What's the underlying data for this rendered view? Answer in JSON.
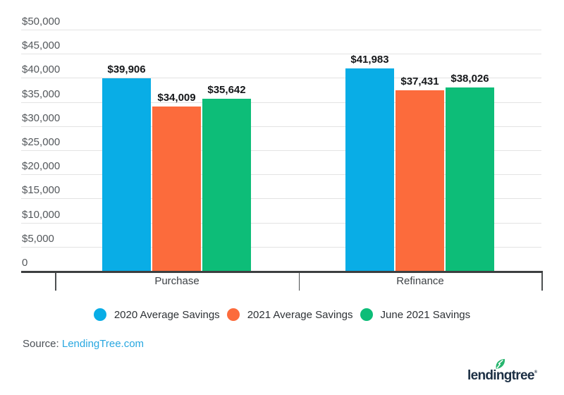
{
  "chart_data": {
    "type": "bar",
    "title": "",
    "categories": [
      "Purchase",
      "Refinance"
    ],
    "series": [
      {
        "name": "2020 Average Savings",
        "color": "#09ade6",
        "values": [
          39906,
          41983
        ],
        "labels": [
          "$39,906",
          "$41,983"
        ]
      },
      {
        "name": "2021 Average Savings",
        "color": "#fc6b3c",
        "values": [
          34009,
          37431
        ],
        "labels": [
          "$34,009",
          "$37,431"
        ]
      },
      {
        "name": "June 2021 Savings",
        "color": "#0dbd78",
        "values": [
          35642,
          38026
        ],
        "labels": [
          "$35,642",
          "$38,026"
        ]
      }
    ],
    "ylim": [
      0,
      50000
    ],
    "ytick_interval": 5000,
    "yticks": [
      {
        "value": 0,
        "label": "0"
      },
      {
        "value": 5000,
        "label": "$5,000"
      },
      {
        "value": 10000,
        "label": "$10,000"
      },
      {
        "value": 15000,
        "label": "$15,000"
      },
      {
        "value": 20000,
        "label": "$20,000"
      },
      {
        "value": 25000,
        "label": "$25,000"
      },
      {
        "value": 30000,
        "label": "$30,000"
      },
      {
        "value": 35000,
        "label": "$35,000"
      },
      {
        "value": 40000,
        "label": "$40,000"
      },
      {
        "value": 45000,
        "label": "$45,000"
      },
      {
        "value": 50000,
        "label": "$50,000"
      }
    ],
    "grid": "horizontal",
    "legend_position": "bottom",
    "xlabel": "",
    "ylabel": ""
  },
  "source": {
    "label": "Source:",
    "link_text": "LendingTree.com",
    "link_color": "#28a7e0"
  },
  "logo": {
    "text": "lendingtree",
    "registered": "®",
    "navy": "#1c2f44",
    "leaf_green": "#27b56e"
  },
  "colors": {
    "background": "#ffffff",
    "axis_line": "#3d3f40",
    "gridline": "#e3e3e3",
    "y_tick_label": "#54585c",
    "value_label": "#15171a",
    "category_label": "#3d4145",
    "legend_text": "#2e3236",
    "source_label": "#4b5056"
  }
}
